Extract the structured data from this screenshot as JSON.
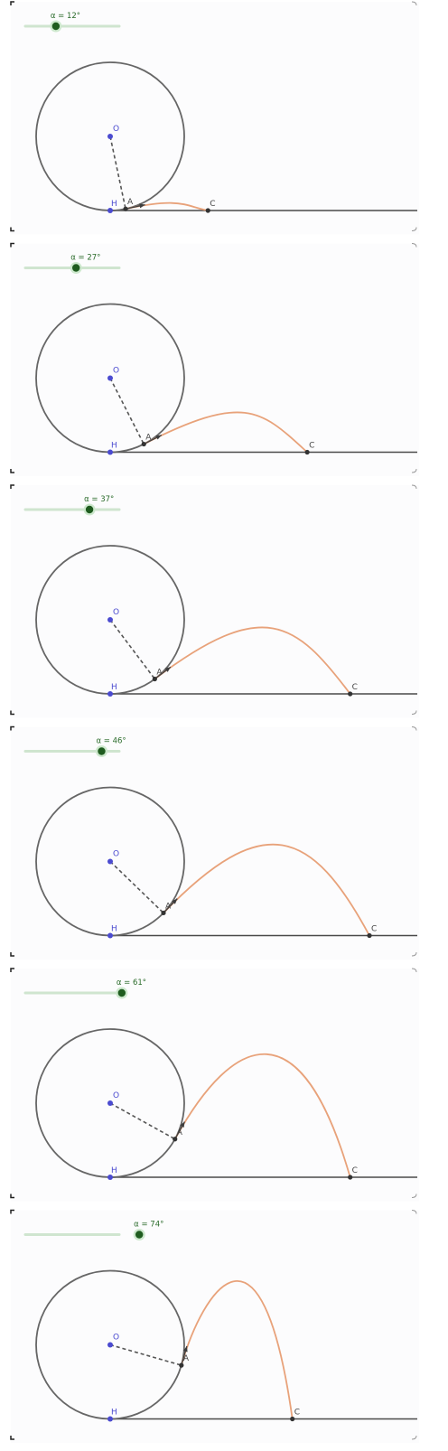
{
  "labels": {
    "center": "O",
    "bottom": "H",
    "launch": "A",
    "landing": "C"
  },
  "angle_prefix": "α = ",
  "angle_unit": "°",
  "slider": {
    "min": 0,
    "max": 90
  },
  "colors": {
    "trajectory": "#e8a27a",
    "point_blue": "#4b4bd0",
    "point_dark": "#333333",
    "slider_knob": "#1f5c1f",
    "slider_track": "#cfe5cf"
  },
  "panels": [
    {
      "alpha": 12,
      "peak_height_ratio": 0.03,
      "landing_distance_ratio": 1.32
    },
    {
      "alpha": 27,
      "peak_height_ratio": 0.38,
      "landing_distance_ratio": 2.66
    },
    {
      "alpha": 37,
      "peak_height_ratio": 0.65,
      "landing_distance_ratio": 3.24
    },
    {
      "alpha": 46,
      "peak_height_ratio": 0.95,
      "landing_distance_ratio": 3.5
    },
    {
      "alpha": 61,
      "peak_height_ratio": 1.48,
      "landing_distance_ratio": 3.24
    },
    {
      "alpha": 74,
      "peak_height_ratio": 1.86,
      "landing_distance_ratio": 2.46
    }
  ]
}
